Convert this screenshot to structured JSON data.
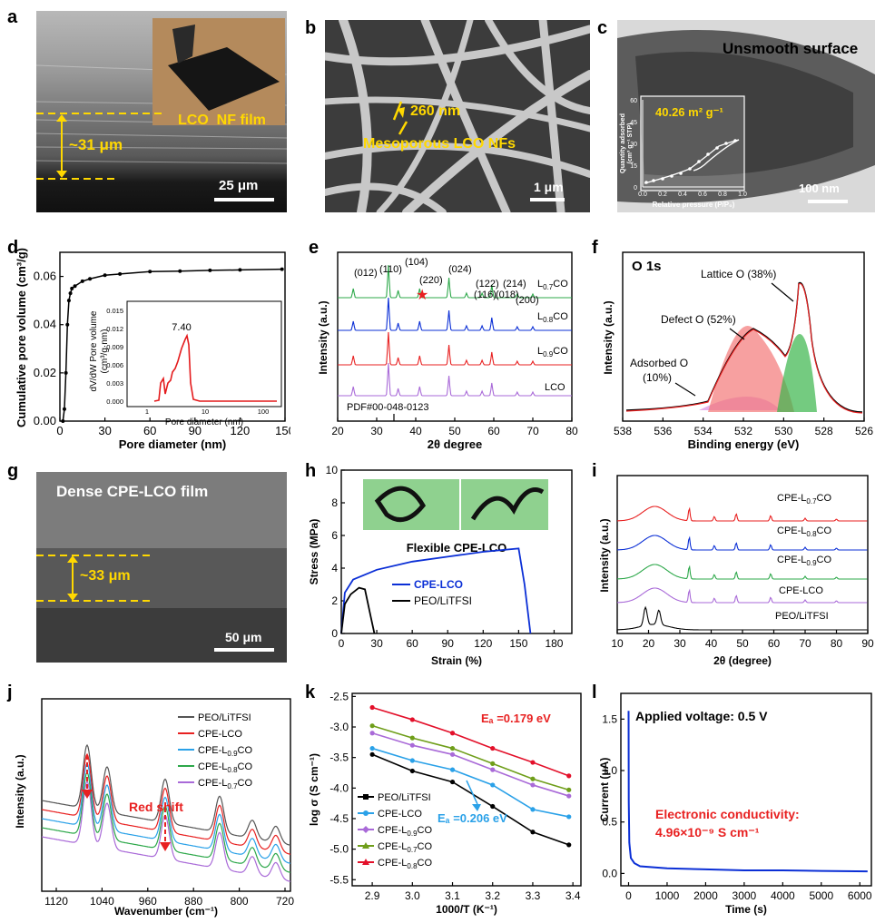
{
  "colors": {
    "yellow": "#ffd800",
    "black": "#000000",
    "blue": "#0b2fd6",
    "red": "#e82121",
    "green": "#2da84a",
    "purple": "#a96ad8",
    "lblue": "#2aa1e8",
    "olive": "#6f9e1a",
    "ered": "#e3102a"
  },
  "panels": {
    "a": {
      "label": "a",
      "film": "LCO  NF film",
      "thickness": "~31 μm",
      "scale": "25 μm"
    },
    "b": {
      "label": "b",
      "diameter": "260 nm",
      "caption": "Mesoporous LCO NFs",
      "scale": "1 μm"
    },
    "c": {
      "label": "c",
      "title": "Unsmooth surface",
      "bet": "40.26 m² g⁻¹",
      "ylabel": "Quantity adsorbed",
      "ylabel2": "(cm³ g⁻¹ STP)",
      "xlabel": "Relative pressure (P/P₀)",
      "yticks": [
        "0",
        "15",
        "30",
        "45",
        "60"
      ],
      "xticks": [
        "0.0",
        "0.2",
        "0.4",
        "0.6",
        "0.8",
        "1.0"
      ],
      "scale": "100 nm"
    },
    "d": {
      "label": "d",
      "ylabel": "Cumulative pore volume (cm³/g)",
      "xlabel": "Pore diameter (nm)",
      "yticks": [
        "0.00",
        "0.02",
        "0.04",
        "0.06"
      ],
      "xticks": [
        "0",
        "30",
        "60",
        "90",
        "120",
        "150"
      ],
      "inset_ylabel": "dV/dW Pore volume",
      "inset_ylabel2": "(cm³/g·nm)",
      "inset_xlabel": "Pore diameter (nm)",
      "inset_peak": "7.40",
      "inset_yticks": [
        "0.000",
        "0.003",
        "0.006",
        "0.009",
        "0.012",
        "0.015"
      ],
      "inset_xticks": [
        "1",
        "10",
        "100"
      ]
    },
    "e": {
      "label": "e",
      "ylabel": "Intensity (a.u.)",
      "xlabel": "2θ degree",
      "xticks": [
        "20",
        "30",
        "40",
        "50",
        "60",
        "70",
        "80"
      ],
      "pdf": "PDF#00-048-0123",
      "peaks": [
        "(012)",
        "(110)",
        "(104)",
        "(220)",
        "(024)",
        "(122)",
        "(116)",
        "(214)",
        "(018)",
        "(200)"
      ],
      "samples": [
        "L0.7CO",
        "L0.8CO",
        "L0.9CO",
        "LCO"
      ],
      "sample_main": [
        "L",
        "L",
        "L",
        "LCO"
      ],
      "sample_sub": [
        "0.7",
        "0.8",
        "0.9",
        ""
      ],
      "sample_tail": [
        "CO",
        "CO",
        "CO",
        ""
      ]
    },
    "f": {
      "label": "f",
      "title": "O 1s",
      "ylabel": "Intensity (a.u.)",
      "xlabel": "Binding energy (eV)",
      "xticks": [
        "538",
        "536",
        "534",
        "532",
        "530",
        "528",
        "526"
      ],
      "lattice": "Lattice O (38%)",
      "defect": "Defect O (52%)",
      "adsorbed": "Adsorbed O",
      "adsorbed_pct": "(10%)"
    },
    "g": {
      "label": "g",
      "title": "Dense CPE-LCO film",
      "thickness": "~33 μm",
      "scale": "50 μm"
    },
    "h": {
      "label": "h",
      "ylabel": "Stress (MPa)",
      "xlabel": "Strain (%)",
      "xticks": [
        "0",
        "30",
        "60",
        "90",
        "120",
        "150",
        "180"
      ],
      "yticks": [
        "0",
        "2",
        "4",
        "6",
        "8",
        "10"
      ],
      "title": "Flexible CPE-LCO",
      "legend": [
        "CPE-LCO",
        "PEO/LiTFSI"
      ]
    },
    "i": {
      "label": "i",
      "ylabel": "Intensity (a.u.)",
      "xlabel": "2θ (degree)",
      "xticks": [
        "10",
        "20",
        "30",
        "40",
        "50",
        "60",
        "70",
        "80",
        "90"
      ],
      "samples": [
        "CPE-L0.7CO",
        "CPE-L0.8CO",
        "CPE-L0.9CO",
        "CPE-LCO",
        "PEO/LiTFSI"
      ],
      "sample_main": [
        "CPE-L",
        "CPE-L",
        "CPE-L",
        "CPE-LCO",
        "PEO/LiTFSI"
      ],
      "sample_sub": [
        "0.7",
        "0.8",
        "0.9",
        "",
        ""
      ],
      "sample_tail": [
        "CO",
        "CO",
        "CO",
        "",
        ""
      ]
    },
    "j": {
      "label": "j",
      "ylabel": "Intensity (a.u.)",
      "xlabel": "Wavenumber (cm⁻¹)",
      "xticks": [
        "1120",
        "1040",
        "960",
        "880",
        "800",
        "720"
      ],
      "shift": "Red shift",
      "legend": [
        "PEO/LiTFSI",
        "CPE-LCO",
        "CPE-L0.9CO",
        "CPE-L0.8CO",
        "CPE-L0.7CO"
      ],
      "legend_main": [
        "PEO/LiTFSI",
        "CPE-LCO",
        "CPE-L",
        "CPE-L",
        "CPE-L"
      ],
      "legend_sub": [
        "",
        "",
        "0.9",
        "0.8",
        "0.7"
      ],
      "legend_tail": [
        "",
        "",
        "CO",
        "CO",
        "CO"
      ]
    },
    "k": {
      "label": "k",
      "ylabel": "log σ (S cm⁻¹)",
      "xlabel": "1000/T (K⁻¹)",
      "xticks": [
        "2.9",
        "3.0",
        "3.1",
        "3.2",
        "3.3",
        "3.4"
      ],
      "yticks": [
        "-2.5",
        "-3.0",
        "-3.5",
        "-4.0",
        "-4.5",
        "-5.0",
        "-5.5"
      ],
      "ea_high": "Eₐ =0.179 eV",
      "ea_low": "Eₐ =0.206 eV",
      "legend": [
        "PEO/LiTFSI",
        "CPE-LCO",
        "CPE-L0.9CO",
        "CPE-L0.7CO",
        "CPE-L0.8CO"
      ],
      "legend_main": [
        "PEO/LiTFSI",
        "CPE-LCO",
        "CPE-L",
        "CPE-L",
        "CPE-L"
      ],
      "legend_sub": [
        "",
        "",
        "0.9",
        "0.7",
        "0.8"
      ],
      "legend_tail": [
        "",
        "",
        "CO",
        "CO",
        "CO"
      ]
    },
    "l": {
      "label": "l",
      "title": "Applied voltage: 0.5 V",
      "ylabel": "Current (μA)",
      "xlabel": "Time (s)",
      "xticks": [
        "0",
        "1000",
        "2000",
        "3000",
        "4000",
        "5000",
        "6000"
      ],
      "yticks": [
        "0.0",
        "0.5",
        "1.0",
        "1.5"
      ],
      "cond1": "Electronic conductivity:",
      "cond2": "4.96×10⁻⁹ S cm⁻¹"
    }
  },
  "chart_data": [
    {
      "type": "line",
      "panel": "d",
      "title": "",
      "xlabel": "Pore diameter (nm)",
      "ylabel": "Cumulative pore volume (cm³/g)",
      "xlim": [
        0,
        150
      ],
      "ylim": [
        0,
        0.07
      ],
      "x": [
        2,
        3,
        4,
        5,
        6,
        7,
        8,
        10,
        15,
        20,
        30,
        40,
        60,
        80,
        100,
        120,
        148
      ],
      "y": [
        0.0,
        0.005,
        0.02,
        0.04,
        0.05,
        0.053,
        0.055,
        0.056,
        0.058,
        0.059,
        0.0605,
        0.061,
        0.062,
        0.0622,
        0.0625,
        0.0627,
        0.063
      ]
    },
    {
      "type": "line",
      "panel": "h",
      "xlabel": "Strain (%)",
      "ylabel": "Stress (MPa)",
      "xlim": [
        0,
        195
      ],
      "ylim": [
        0,
        10
      ],
      "series": [
        {
          "name": "CPE-LCO",
          "x": [
            0,
            3,
            10,
            30,
            60,
            90,
            120,
            150,
            155,
            160
          ],
          "y": [
            0,
            2.5,
            3.3,
            3.9,
            4.4,
            4.7,
            5.0,
            5.2,
            3.0,
            0
          ]
        },
        {
          "name": "PEO/LiTFSI",
          "x": [
            0,
            3,
            8,
            15,
            20,
            25,
            28
          ],
          "y": [
            0,
            1.8,
            2.4,
            2.8,
            2.7,
            1.0,
            0
          ]
        }
      ]
    },
    {
      "type": "line",
      "panel": "k",
      "xlabel": "1000/T (K⁻¹)",
      "ylabel": "log σ (S cm⁻¹)",
      "xlim": [
        2.85,
        3.42
      ],
      "ylim": [
        -5.6,
        -2.45
      ],
      "categories": [
        2.9,
        3.0,
        3.1,
        3.2,
        3.3,
        3.39
      ],
      "series": [
        {
          "name": "PEO/LiTFSI",
          "values": [
            -3.45,
            -3.72,
            -3.9,
            -4.3,
            -4.72,
            -4.93
          ]
        },
        {
          "name": "CPE-LCO",
          "values": [
            -3.35,
            -3.55,
            -3.7,
            -3.95,
            -4.35,
            -4.47
          ]
        },
        {
          "name": "CPE-L0.9CO",
          "values": [
            -3.1,
            -3.3,
            -3.45,
            -3.7,
            -3.95,
            -4.13
          ]
        },
        {
          "name": "CPE-L0.7CO",
          "values": [
            -2.98,
            -3.18,
            -3.35,
            -3.6,
            -3.85,
            -4.03
          ]
        },
        {
          "name": "CPE-L0.8CO",
          "values": [
            -2.68,
            -2.88,
            -3.1,
            -3.35,
            -3.58,
            -3.8
          ]
        }
      ]
    },
    {
      "type": "line",
      "panel": "l",
      "xlabel": "Time (s)",
      "ylabel": "Current (μA)",
      "xlim": [
        -200,
        6300
      ],
      "ylim": [
        -0.12,
        1.75
      ],
      "x": [
        0,
        5,
        20,
        60,
        150,
        300,
        1000,
        2000,
        3000,
        4000,
        5000,
        6200
      ],
      "y": [
        1.58,
        0.7,
        0.3,
        0.15,
        0.1,
        0.07,
        0.05,
        0.04,
        0.03,
        0.03,
        0.025,
        0.02
      ]
    }
  ]
}
